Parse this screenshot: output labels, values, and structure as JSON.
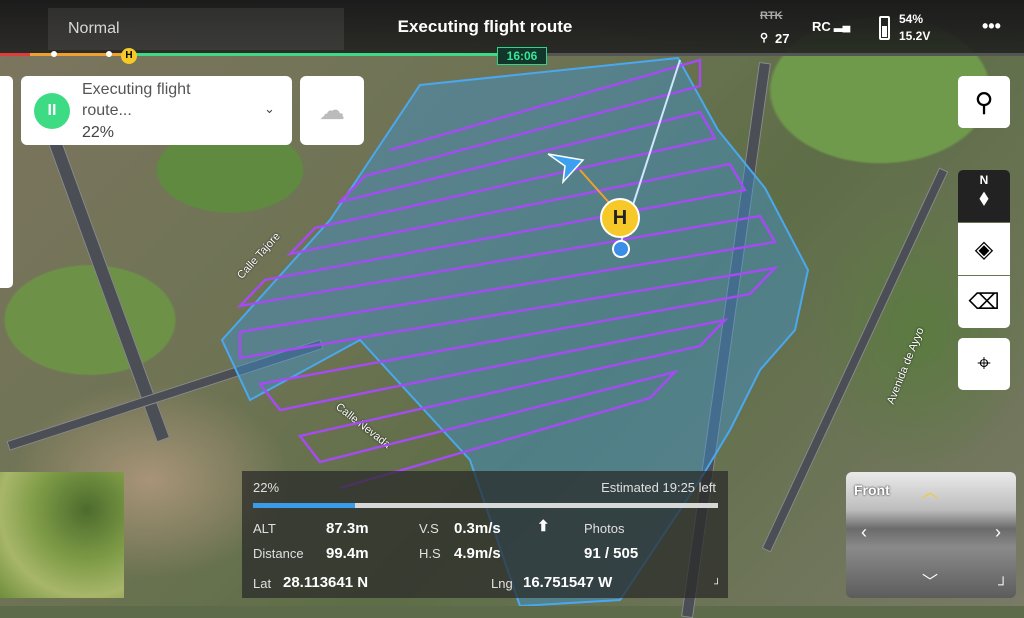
{
  "topbar": {
    "mode": "Normal",
    "title": "Executing flight route",
    "rtk": "RTK",
    "satellites": "27",
    "rc": "RC",
    "battery_pct": "54%",
    "battery_voltage": "15.2V",
    "more_icon": "ellipsis-icon"
  },
  "timeline": {
    "remaining_time": "16:06",
    "home_marker": "H",
    "progress_color": "#3ddc84"
  },
  "task_card": {
    "status": "Executing flight route...",
    "progress": "22%",
    "pause_icon": "pause-icon",
    "accent": "#3ddc84"
  },
  "map": {
    "home_label": "H",
    "road_labels": [
      "Calle Tajore",
      "Calle Nevada",
      "Avenida de Ayyo"
    ],
    "route_color": "#a64bf4",
    "area_color": "#3aa0e6"
  },
  "right_toolbar": [
    "search-icon",
    "compass-icon",
    "layers-icon",
    "eraser-icon",
    "locate-icon"
  ],
  "compass": {
    "north": "N"
  },
  "telemetry": {
    "progress_label": "22%",
    "progress_value": 0.22,
    "estimated": "Estimated 19:25 left",
    "alt_label": "ALT",
    "alt": "87.3m",
    "vs_label": "V.S",
    "vs": "0.3m/s",
    "photos_label": "Photos",
    "distance_label": "Distance",
    "distance": "99.4m",
    "hs_label": "H.S",
    "hs": "4.9m/s",
    "photos": "91 / 505",
    "lat_label": "Lat",
    "lat": "28.113641 N",
    "lng_label": "Lng",
    "lng": "16.751547 W"
  },
  "camera": {
    "view": "Front"
  }
}
